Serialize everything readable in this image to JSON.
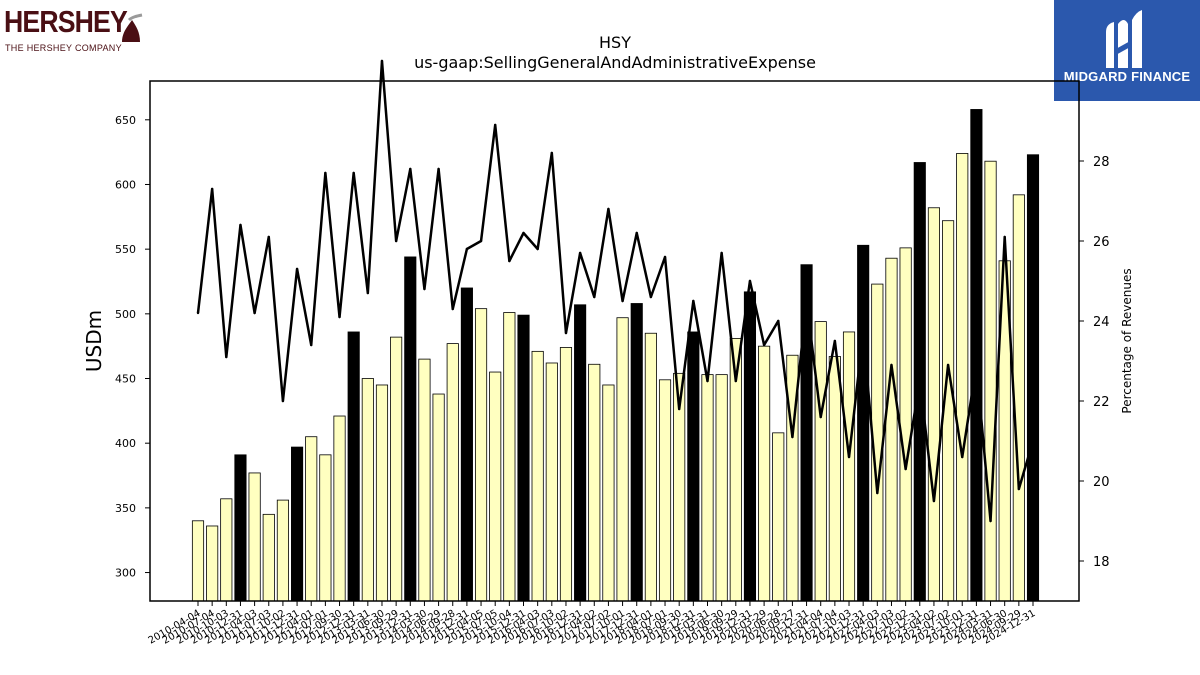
{
  "logos": {
    "left_word": "HERSHEY",
    "left_sub": "THE HERSHEY COMPANY",
    "right_brand": "MIDGARD FINANCE"
  },
  "chart_data": {
    "type": "bar",
    "title": "HSY",
    "subtitle": "us-gaap:SellingGeneralAndAdministrativeExpense",
    "ylabel": "USDm",
    "y2label": "Percentage of Revenues",
    "ylim": [
      278,
      680
    ],
    "y2lim": [
      17,
      30
    ],
    "yticks": [
      300,
      350,
      400,
      450,
      500,
      550,
      600,
      650
    ],
    "y2ticks": [
      18,
      20,
      22,
      24,
      26,
      28
    ],
    "colors": {
      "quarter_bar": "#ffffc0",
      "annual_bar": "#000000",
      "line": "#000000",
      "axis": "#000000"
    },
    "categories": [
      "2010-04-04",
      "2010-07-04",
      "2010-10-03",
      "2010-12-31",
      "2011-04-03",
      "2011-07-03",
      "2011-10-02",
      "2011-12-31",
      "2012-04-01",
      "2012-07-01",
      "2012-09-30",
      "2012-12-31",
      "2013-03-31",
      "2013-06-30",
      "2013-09-29",
      "2013-12-31",
      "2014-03-30",
      "2014-06-29",
      "2014-09-28",
      "2014-12-31",
      "2015-04-05",
      "2015-07-05",
      "2015-10-04",
      "2015-12-31",
      "2016-04-03",
      "2016-07-03",
      "2016-10-02",
      "2016-12-31",
      "2017-04-02",
      "2017-07-02",
      "2017-10-01",
      "2017-12-31",
      "2018-04-01",
      "2018-07-01",
      "2018-09-30",
      "2018-12-31",
      "2019-03-31",
      "2019-06-30",
      "2019-09-29",
      "2019-12-31",
      "2020-03-29",
      "2020-06-28",
      "2020-09-27",
      "2020-12-31",
      "2021-04-04",
      "2021-07-04",
      "2021-10-03",
      "2021-12-31",
      "2022-04-03",
      "2022-07-03",
      "2022-10-02",
      "2022-12-31",
      "2023-04-02",
      "2023-07-02",
      "2023-10-01",
      "2023-12-31",
      "2024-03-31",
      "2024-06-30",
      "2024-09-29",
      "2024-12-31"
    ],
    "tick_labels": [
      "2010-04-04",
      "2010-07-04",
      "2010-10-03",
      "2010-12-31",
      "2011-04-03",
      "2011-07-03",
      "2011-10-02",
      "2011-12-31",
      "2012-04-01",
      "2012-07-01",
      "2012-09-30",
      "2012-12-31",
      "2013-03-31",
      "2013-06-30",
      "2013-09-29",
      "2013-12-31",
      "2014-03-30",
      "2014-06-29",
      "2014-09-28",
      "2014-12-31",
      "2015-04-05",
      "2015-07-05",
      "2015-10-04",
      "2015-12-31",
      "2016-04-03",
      "2016-07-03",
      "2016-10-02",
      "2016-12-31",
      "2017-04-02",
      "2017-07-02",
      "2017-10-01",
      "2017-12-31",
      "2018-04-01",
      "2018-07-01",
      "2018-09-30",
      "2018-12-31",
      "2019-03-31",
      "2019-06-30",
      "2019-09-29",
      "2019-12-31",
      "2020-03-29",
      "2020-06-28",
      "2020-09-27",
      "2020-12-31",
      "2021-04-04",
      "2021-07-04",
      "2021-10-03",
      "2021-12-31",
      "2022-04-03",
      "2022-07-03",
      "2022-10-02",
      "2022-12-31",
      "2023-04-02",
      "2023-07-02",
      "2023-10-01",
      "2023-12-31",
      "2024-03-31",
      "2024-06-30",
      "2024-09-29",
      "2024-12-31"
    ],
    "annual": [
      false,
      false,
      false,
      true,
      false,
      false,
      false,
      true,
      false,
      false,
      false,
      true,
      false,
      false,
      false,
      true,
      false,
      false,
      false,
      true,
      false,
      false,
      false,
      true,
      false,
      false,
      false,
      true,
      false,
      false,
      false,
      true,
      false,
      false,
      false,
      true,
      false,
      false,
      false,
      true,
      false,
      false,
      false,
      true,
      false,
      false,
      false,
      true,
      false,
      false,
      false,
      true,
      false,
      false,
      false,
      true,
      false,
      false,
      false,
      true
    ],
    "series": [
      {
        "values": [
          340,
          336,
          357,
          391,
          377,
          345,
          356,
          397,
          405,
          391,
          421,
          486,
          450,
          445,
          482,
          544,
          465,
          438,
          477,
          520,
          504,
          455,
          501,
          499,
          471,
          462,
          474,
          507,
          461,
          445,
          497,
          508,
          485,
          449,
          454,
          486,
          453,
          453,
          481,
          517,
          475,
          408,
          468,
          538,
          494,
          467,
          486,
          553,
          523,
          543,
          551,
          617,
          582,
          572,
          624,
          658,
          618,
          541,
          592,
          623
        ]
      },
      {
        "values": [
          24.2,
          27.3,
          23.1,
          26.4,
          24.2,
          26.1,
          22.0,
          25.3,
          23.4,
          27.7,
          24.1,
          27.7,
          24.7,
          30.5,
          26.0,
          27.8,
          24.8,
          27.8,
          24.3,
          25.8,
          26.0,
          28.9,
          25.5,
          26.2,
          25.8,
          28.2,
          23.7,
          25.7,
          24.6,
          26.8,
          24.5,
          26.2,
          24.6,
          25.6,
          21.8,
          24.5,
          22.5,
          25.7,
          22.5,
          25.0,
          23.4,
          24.0,
          21.1,
          24.5,
          21.6,
          23.5,
          20.6,
          23.7,
          19.7,
          22.9,
          20.3,
          22.5,
          19.5,
          22.9,
          20.6,
          22.9,
          19.0,
          26.1,
          19.8,
          21.0
        ]
      }
    ]
  }
}
